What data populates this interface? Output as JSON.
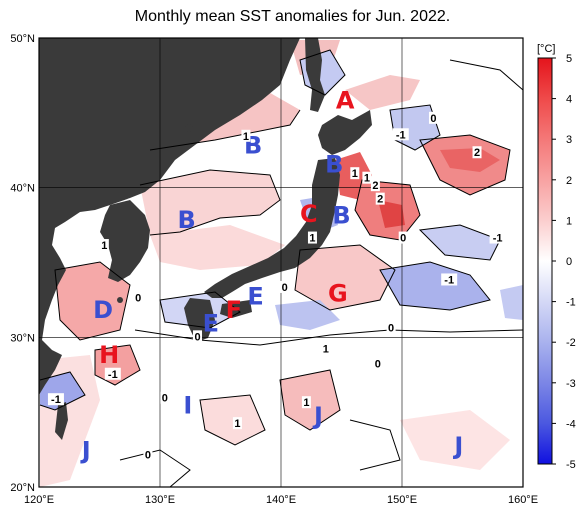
{
  "title": "Monthly mean SST anomalies for Jun. 2022.",
  "map": {
    "lat_labels": [
      {
        "text": "50°N",
        "lat": 50
      },
      {
        "text": "40°N",
        "lat": 40
      },
      {
        "text": "30°N",
        "lat": 30
      },
      {
        "text": "20°N",
        "lat": 20
      }
    ],
    "lon_labels": [
      {
        "text": "120°E",
        "lon": 120
      },
      {
        "text": "130°E",
        "lon": 130
      },
      {
        "text": "140°E",
        "lon": 140
      },
      {
        "text": "150°E",
        "lon": 150
      },
      {
        "text": "160°E",
        "lon": 160
      }
    ],
    "extent": {
      "lon_min": 120,
      "lon_max": 160,
      "lat_min": 20,
      "lat_max": 50
    },
    "land_color": "#3a3a3a",
    "grid": true
  },
  "colorbar": {
    "unit": "[°C]",
    "min": -5,
    "max": 5,
    "ticks": [
      "5",
      "4",
      "3",
      "2",
      "1",
      "0",
      "-1",
      "-2",
      "-3",
      "-4",
      "-5"
    ],
    "warm_color": "#e8232a",
    "cold_color": "#1414e6"
  },
  "zones": [
    {
      "letter": "A",
      "lon": 145.3,
      "lat": 45.9,
      "color": "#e8141e"
    },
    {
      "letter": "B",
      "lon": 137.7,
      "lat": 42.9,
      "color": "#3a4fd0"
    },
    {
      "letter": "B",
      "lon": 144.4,
      "lat": 41.6,
      "color": "#3a4fd0"
    },
    {
      "letter": "B",
      "lon": 145.0,
      "lat": 38.2,
      "color": "#3a4fd0"
    },
    {
      "letter": "B",
      "lon": 132.2,
      "lat": 37.9,
      "color": "#3a4fd0"
    },
    {
      "letter": "C",
      "lon": 142.3,
      "lat": 38.3,
      "color": "#e8141e"
    },
    {
      "letter": "D",
      "lon": 125.3,
      "lat": 31.9,
      "color": "#3a4fd0"
    },
    {
      "letter": "E",
      "lon": 137.9,
      "lat": 32.8,
      "color": "#3a4fd0"
    },
    {
      "letter": "E",
      "lon": 134.2,
      "lat": 31.0,
      "color": "#3a4fd0"
    },
    {
      "letter": "F",
      "lon": 136.1,
      "lat": 31.9,
      "color": "#e8141e"
    },
    {
      "letter": "G",
      "lon": 144.7,
      "lat": 33.0,
      "color": "#e8141e"
    },
    {
      "letter": "H",
      "lon": 125.8,
      "lat": 28.9,
      "color": "#e8141e"
    },
    {
      "letter": "I",
      "lon": 132.3,
      "lat": 25.5,
      "color": "#3a4fd0"
    },
    {
      "letter": "J",
      "lon": 123.9,
      "lat": 22.5,
      "color": "#3a4fd0"
    },
    {
      "letter": "J",
      "lon": 143.1,
      "lat": 24.8,
      "color": "#3a4fd0"
    },
    {
      "letter": "J",
      "lon": 154.7,
      "lat": 22.8,
      "color": "#3a4fd0"
    }
  ],
  "contour_labels": [
    {
      "text": "1",
      "lon": 137.1,
      "lat": 43.4
    },
    {
      "text": "-1",
      "lon": 149.9,
      "lat": 43.5
    },
    {
      "text": "0",
      "lon": 152.6,
      "lat": 44.6
    },
    {
      "text": "2",
      "lon": 156.2,
      "lat": 42.3
    },
    {
      "text": "1",
      "lon": 146.1,
      "lat": 40.9
    },
    {
      "text": "1",
      "lon": 147.1,
      "lat": 40.6
    },
    {
      "text": "2",
      "lon": 147.8,
      "lat": 40.1
    },
    {
      "text": "2",
      "lon": 148.2,
      "lat": 39.2
    },
    {
      "text": "1",
      "lon": 142.6,
      "lat": 36.6
    },
    {
      "text": "0",
      "lon": 150.1,
      "lat": 36.6
    },
    {
      "text": "-1",
      "lon": 157.9,
      "lat": 36.6
    },
    {
      "text": "1",
      "lon": 125.4,
      "lat": 36.1
    },
    {
      "text": "0",
      "lon": 140.3,
      "lat": 33.3
    },
    {
      "text": "-1",
      "lon": 153.9,
      "lat": 33.8
    },
    {
      "text": "0",
      "lon": 128.2,
      "lat": 32.6
    },
    {
      "text": "0",
      "lon": 133.1,
      "lat": 30.0
    },
    {
      "text": "0",
      "lon": 149.1,
      "lat": 30.6
    },
    {
      "text": "1",
      "lon": 143.7,
      "lat": 29.2
    },
    {
      "text": "-1",
      "lon": 126.1,
      "lat": 27.5
    },
    {
      "text": "0",
      "lon": 148.0,
      "lat": 28.2
    },
    {
      "text": "-1",
      "lon": 121.4,
      "lat": 25.8
    },
    {
      "text": "0",
      "lon": 130.4,
      "lat": 25.9
    },
    {
      "text": "1",
      "lon": 142.1,
      "lat": 25.6
    },
    {
      "text": "1",
      "lon": 136.4,
      "lat": 24.2
    },
    {
      "text": "0",
      "lon": 129.0,
      "lat": 22.1
    }
  ]
}
